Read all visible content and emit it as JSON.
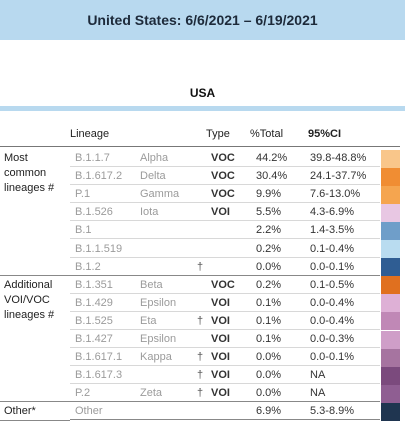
{
  "header": {
    "title": "United States: 6/6/2021 – 6/19/2021"
  },
  "region": {
    "title": "USA"
  },
  "columns": {
    "lineage": "Lineage",
    "type": "Type",
    "total": "%Total",
    "ci": "95%CI"
  },
  "groups": [
    {
      "label_lines": [
        "Most",
        "common",
        "lineages #"
      ]
    },
    {
      "label_lines": [
        "Additional",
        "VOI/VOC",
        "lineages #"
      ]
    },
    {
      "label_lines": [
        "Other*"
      ]
    }
  ],
  "rows": [
    {
      "lineage": "B.1.1.7",
      "who": "Alpha",
      "dagger": "",
      "type": "VOC",
      "total": "44.2%",
      "ci": "39.8-48.8%",
      "color": "#f9c68a"
    },
    {
      "lineage": "B.1.617.2",
      "who": "Delta",
      "dagger": "",
      "type": "VOC",
      "total": "30.4%",
      "ci": "24.1-37.7%",
      "color": "#f08d33"
    },
    {
      "lineage": "P.1",
      "who": "Gamma",
      "dagger": "",
      "type": "VOC",
      "total": "9.9%",
      "ci": "7.6-13.0%",
      "color": "#f5a54f"
    },
    {
      "lineage": "B.1.526",
      "who": "Iota",
      "dagger": "",
      "type": "VOI",
      "total": "5.5%",
      "ci": "4.3-6.9%",
      "color": "#e8c7e3"
    },
    {
      "lineage": "B.1",
      "who": "",
      "dagger": "",
      "type": "",
      "total": "2.2%",
      "ci": "1.4-3.5%",
      "color": "#6f9ec9"
    },
    {
      "lineage": "B.1.1.519",
      "who": "",
      "dagger": "",
      "type": "",
      "total": "0.2%",
      "ci": "0.1-0.4%",
      "color": "#b9dcf0"
    },
    {
      "lineage": "B.1.2",
      "who": "",
      "dagger": "†",
      "type": "",
      "total": "0.0%",
      "ci": "0.0-0.1%",
      "color": "#2f5d93"
    },
    {
      "lineage": "B.1.351",
      "who": "Beta",
      "dagger": "",
      "type": "VOC",
      "total": "0.2%",
      "ci": "0.1-0.5%",
      "color": "#e0701f"
    },
    {
      "lineage": "B.1.429",
      "who": "Epsilon",
      "dagger": "",
      "type": "VOI",
      "total": "0.1%",
      "ci": "0.0-0.4%",
      "color": "#deb0d6"
    },
    {
      "lineage": "B.1.525",
      "who": "Eta",
      "dagger": "†",
      "type": "VOI",
      "total": "0.1%",
      "ci": "0.0-0.4%",
      "color": "#c088b6"
    },
    {
      "lineage": "B.1.427",
      "who": "Epsilon",
      "dagger": "",
      "type": "VOI",
      "total": "0.1%",
      "ci": "0.0-0.3%",
      "color": "#cf9ec8"
    },
    {
      "lineage": "B.1.617.1",
      "who": "Kappa",
      "dagger": "†",
      "type": "VOI",
      "total": "0.0%",
      "ci": "0.0-0.1%",
      "color": "#a674a0"
    },
    {
      "lineage": "B.1.617.3",
      "who": "",
      "dagger": "†",
      "type": "VOI",
      "total": "0.0%",
      "ci": "NA",
      "color": "#7b4a7d"
    },
    {
      "lineage": "P.2",
      "who": "Zeta",
      "dagger": "†",
      "type": "VOI",
      "total": "0.0%",
      "ci": "NA",
      "color": "#8f5e92"
    },
    {
      "lineage": "Other",
      "who": "",
      "dagger": "",
      "type": "",
      "total": "6.9%",
      "ci": "5.3-8.9%",
      "color": "#1f3550"
    }
  ]
}
